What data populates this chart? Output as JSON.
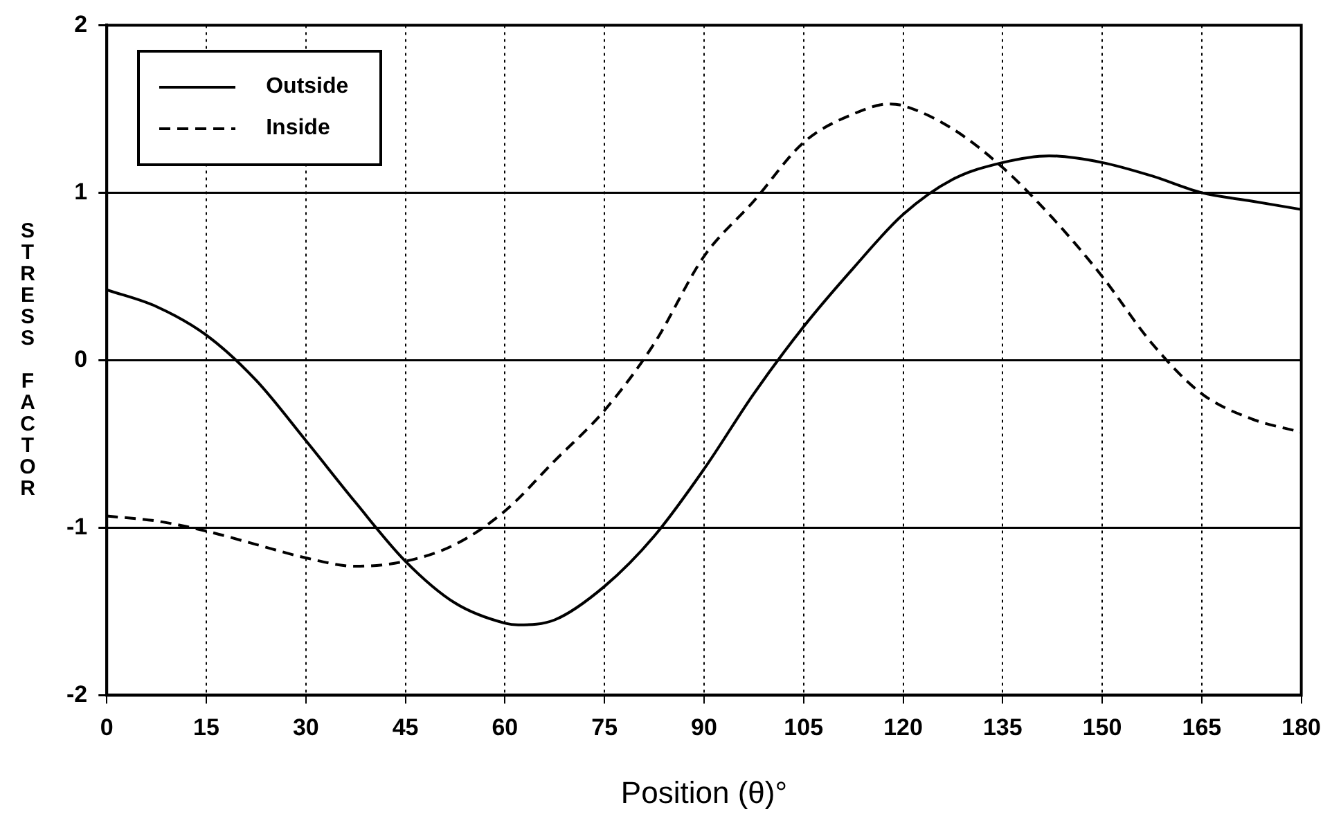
{
  "chart_data": {
    "type": "line",
    "xlabel": "Position (θ)°",
    "ylabel": "STRESS FACTOR",
    "xlim": [
      0,
      180
    ],
    "xticks": [
      0,
      15,
      30,
      45,
      60,
      75,
      90,
      105,
      120,
      135,
      150,
      165,
      180
    ],
    "ylim": [
      -2,
      2
    ],
    "yticks": [
      -2,
      -1,
      0,
      1,
      2
    ],
    "grid": true,
    "legend": "top left",
    "marker": "none",
    "series": [
      {
        "name": "Outside",
        "color": "#000000",
        "line_style": "solid",
        "x": [
          0,
          7.5,
          15,
          22.5,
          30,
          37.5,
          45,
          52.5,
          60,
          62,
          67.5,
          75,
          82.5,
          90,
          97.5,
          105,
          112.5,
          120,
          127.5,
          135,
          142,
          150,
          157.5,
          165,
          172.5,
          180
        ],
        "values": [
          0.42,
          0.32,
          0.15,
          -0.12,
          -0.48,
          -0.85,
          -1.2,
          -1.45,
          -1.57,
          -1.58,
          -1.55,
          -1.35,
          -1.05,
          -0.65,
          -0.2,
          0.2,
          0.55,
          0.87,
          1.08,
          1.18,
          1.22,
          1.18,
          1.1,
          1.0,
          0.95,
          0.9
        ]
      },
      {
        "name": "Inside",
        "color": "#000000",
        "line_style": "dashed",
        "x": [
          0,
          7.5,
          15,
          22.5,
          30,
          37.5,
          45,
          52.5,
          60,
          67.5,
          75,
          82.5,
          90,
          97.5,
          105,
          112.5,
          118,
          120,
          127.5,
          135,
          142.5,
          150,
          157.5,
          165,
          172.5,
          180
        ],
        "values": [
          -0.93,
          -0.96,
          -1.02,
          -1.1,
          -1.18,
          -1.23,
          -1.2,
          -1.1,
          -0.9,
          -0.6,
          -0.3,
          0.1,
          0.62,
          0.95,
          1.3,
          1.47,
          1.53,
          1.52,
          1.38,
          1.15,
          0.85,
          0.5,
          0.1,
          -0.2,
          -0.35,
          -0.43
        ]
      }
    ]
  }
}
